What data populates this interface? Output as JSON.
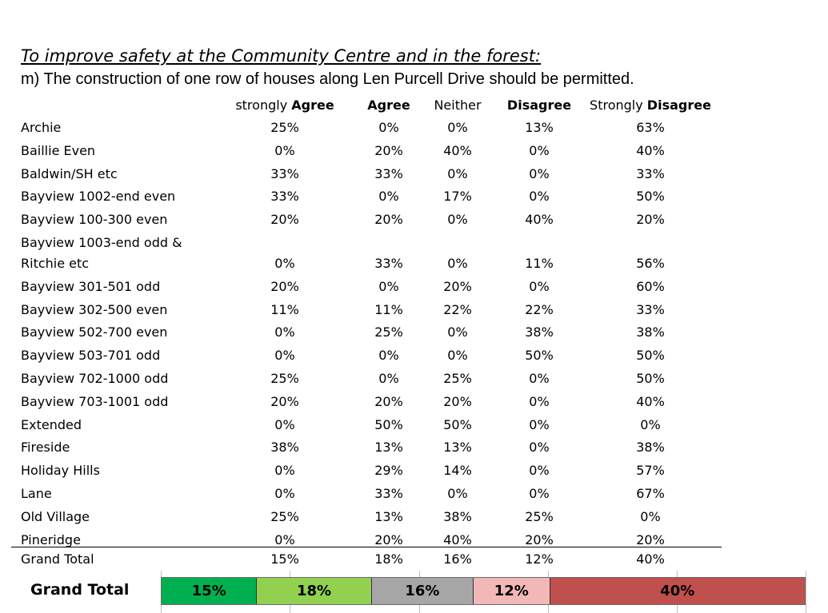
{
  "heading": "To improve safety at the Community Centre and in the forest:",
  "question": "m) The construction of one row of houses along Len Purcell Drive should be permitted.",
  "columns": [
    {
      "pre": "strongly ",
      "bold": "Agree"
    },
    {
      "pre": "",
      "bold": "Agree"
    },
    {
      "pre": "Neither",
      "bold": ""
    },
    {
      "pre": "",
      "bold": "Disagree"
    },
    {
      "pre": "Strongly ",
      "bold": "Disagree"
    }
  ],
  "rows": [
    {
      "label": "Archie",
      "values": [
        "25%",
        "0%",
        "0%",
        "13%",
        "63%"
      ]
    },
    {
      "label": "Baillie Even",
      "values": [
        "0%",
        "20%",
        "40%",
        "0%",
        "40%"
      ]
    },
    {
      "label": "Baldwin/SH etc",
      "values": [
        "33%",
        "33%",
        "0%",
        "0%",
        "33%"
      ]
    },
    {
      "label": "Bayview 1002-end even",
      "values": [
        "33%",
        "0%",
        "17%",
        "0%",
        "50%"
      ]
    },
    {
      "label": "Bayview 100-300 even",
      "values": [
        "20%",
        "20%",
        "0%",
        "40%",
        "20%"
      ]
    },
    {
      "label": "Bayview 1003-end odd &",
      "label2": "Ritchie etc",
      "values": [
        "0%",
        "33%",
        "0%",
        "11%",
        "56%"
      ]
    },
    {
      "label": "Bayview 301-501 odd",
      "values": [
        "20%",
        "0%",
        "20%",
        "0%",
        "60%"
      ]
    },
    {
      "label": "Bayview 302-500 even",
      "values": [
        "11%",
        "11%",
        "22%",
        "22%",
        "33%"
      ]
    },
    {
      "label": "Bayview 502-700 even",
      "values": [
        "0%",
        "25%",
        "0%",
        "38%",
        "38%"
      ]
    },
    {
      "label": "Bayview 503-701 odd",
      "values": [
        "0%",
        "0%",
        "0%",
        "50%",
        "50%"
      ]
    },
    {
      "label": "Bayview 702-1000 odd",
      "values": [
        "25%",
        "0%",
        "25%",
        "0%",
        "50%"
      ]
    },
    {
      "label": "Bayview 703-1001 odd",
      "values": [
        "20%",
        "20%",
        "20%",
        "0%",
        "40%"
      ]
    },
    {
      "label": "Extended",
      "values": [
        "0%",
        "50%",
        "50%",
        "0%",
        "0%"
      ]
    },
    {
      "label": "Fireside",
      "values": [
        "38%",
        "13%",
        "13%",
        "0%",
        "38%"
      ]
    },
    {
      "label": "Holiday Hills",
      "values": [
        "0%",
        "29%",
        "14%",
        "0%",
        "57%"
      ]
    },
    {
      "label": "Lane",
      "values": [
        "0%",
        "33%",
        "0%",
        "0%",
        "67%"
      ]
    },
    {
      "label": "Old Village",
      "values": [
        "25%",
        "13%",
        "38%",
        "25%",
        "0%"
      ]
    },
    {
      "label": "Pineridge",
      "values": [
        "0%",
        "20%",
        "40%",
        "20%",
        "20%"
      ]
    }
  ],
  "grand_total": {
    "label": "Grand Total",
    "values": [
      "15%",
      "18%",
      "16%",
      "12%",
      "40%"
    ]
  },
  "chart_data": {
    "type": "bar",
    "stacked": true,
    "orientation": "horizontal",
    "categories": [
      "Grand Total"
    ],
    "series": [
      {
        "name": "strongly Agree",
        "values": [
          15
        ],
        "label": "15%",
        "color": "#00b050"
      },
      {
        "name": "Agree",
        "values": [
          18
        ],
        "label": "18%",
        "color": "#92d050"
      },
      {
        "name": "Neither",
        "values": [
          16
        ],
        "label": "16%",
        "color": "#a6a6a6"
      },
      {
        "name": "Disagree",
        "values": [
          12
        ],
        "label": "12%",
        "color": "#f2b8b8"
      },
      {
        "name": "Strongly Disagree",
        "values": [
          40
        ],
        "label": "40%",
        "color": "#c0504d"
      }
    ]
  }
}
